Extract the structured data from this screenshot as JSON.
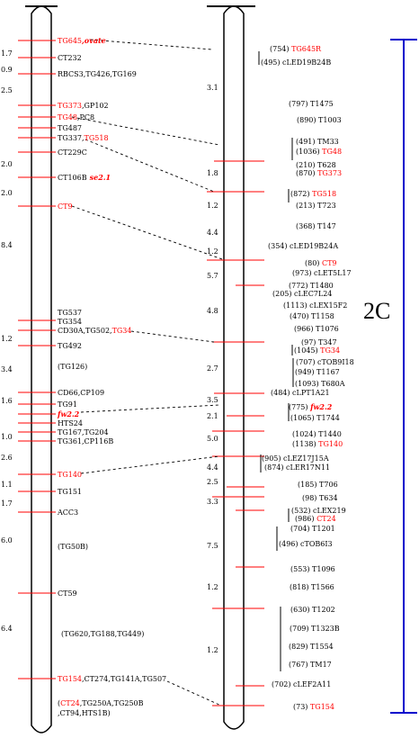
{
  "chromosome_label": "2C",
  "left_map": {
    "intervals": [
      "1.7",
      "0.9",
      "2.5",
      "2.0",
      "2.0",
      "8.4",
      "1.2",
      "3.4",
      "1.6",
      "1.0",
      "2.6",
      "1.1",
      "1.7",
      "6.0",
      "6.4"
    ],
    "markers": [
      {
        "text": "TG645",
        "red": true
      },
      {
        "text": ",ovate",
        "red": true,
        "italic": true
      },
      {
        "text": "CT232"
      },
      {
        "text": "RBCS3,TG426,TG169"
      },
      {
        "text": "TG373",
        "red": true
      },
      {
        "text": ",GP102"
      },
      {
        "text": "TG48",
        "red": true
      },
      {
        "text": ",PC8"
      },
      {
        "text": "TG487"
      },
      {
        "text": "TG337,"
      },
      {
        "text": "TG518",
        "red": true
      },
      {
        "text": "CT229C"
      },
      {
        "text": "CT106B"
      },
      {
        "text": "se2.1",
        "red": true,
        "italic": true
      },
      {
        "text": "CT9",
        "red": true
      },
      {
        "text": "TG537"
      },
      {
        "text": "TG354"
      },
      {
        "text": "CD30A,TG502,"
      },
      {
        "text": "TG34",
        "red": true
      },
      {
        "text": "TG492"
      },
      {
        "text": "(TG126)"
      },
      {
        "text": "CD66,CP109"
      },
      {
        "text": "TG91"
      },
      {
        "text": "fw2.2",
        "red": true,
        "italic": true
      },
      {
        "text": "HTS24"
      },
      {
        "text": "TG167,TG204"
      },
      {
        "text": "TG361,CP116B"
      },
      {
        "text": "TG140",
        "red": true
      },
      {
        "text": "TG151"
      },
      {
        "text": "ACC3"
      },
      {
        "text": "(TG50B)"
      },
      {
        "text": "CT59"
      },
      {
        "text": "(TG620,TG188,TG449)"
      },
      {
        "text": "TG154",
        "red": true
      },
      {
        "text": ",CT274,TG141A,TG507"
      },
      {
        "text": "(",
        "red": false
      },
      {
        "text": "CT24",
        "red": true
      },
      {
        "text": ",TG250A,TG250B"
      },
      {
        "text": ",CT94,HTS1B)"
      }
    ]
  },
  "right_map": {
    "intervals": [
      "3.1",
      "1.8",
      "1.2",
      "4.4",
      "1.2",
      "5.7",
      "4.8",
      "2.7",
      "3.5",
      "2.1",
      "5.0",
      "4.4",
      "2.5",
      "3.3",
      "7.5",
      "1.2",
      "1.2"
    ],
    "markers": [
      {
        "text": "(754) "
      },
      {
        "text": "TG645R",
        "red": true
      },
      {
        "text": "(495) cLED19B24B"
      },
      {
        "text": "(797) T1475"
      },
      {
        "text": "(890) T1003"
      },
      {
        "text": "(491) TM33"
      },
      {
        "text": "(1036) "
      },
      {
        "text": "TG48",
        "red": true
      },
      {
        "text": "(210) T628"
      },
      {
        "text": "(870) "
      },
      {
        "text": "TG373",
        "red": true
      },
      {
        "text": "(872) "
      },
      {
        "text": "TG518",
        "red": true
      },
      {
        "text": "(213) T723"
      },
      {
        "text": "(368) T147"
      },
      {
        "text": "(354) cLED19B24A"
      },
      {
        "text": "(80) "
      },
      {
        "text": "CT9",
        "red": true
      },
      {
        "text": "(973) cLET5L17"
      },
      {
        "text": "(772) T1480"
      },
      {
        "text": "(205) cLEC7L24"
      },
      {
        "text": "(1113) cLEX15F2"
      },
      {
        "text": "(470) T1158"
      },
      {
        "text": "(966) T1076"
      },
      {
        "text": "(97) T347"
      },
      {
        "text": "(1045) "
      },
      {
        "text": "TG34",
        "red": true
      },
      {
        "text": "(707) cTOB9I18"
      },
      {
        "text": "(949) T1167"
      },
      {
        "text": "(1093) T680A"
      },
      {
        "text": "(484) cLPT1A21"
      },
      {
        "text": "(775) "
      },
      {
        "text": "fw2.2",
        "red": true,
        "italic": true
      },
      {
        "text": "(1065) T1744"
      },
      {
        "text": "(1024) T1440"
      },
      {
        "text": "(1138) "
      },
      {
        "text": "TG140",
        "red": true
      },
      {
        "text": "(905) cLEZ17J15A"
      },
      {
        "text": "(874) cLER17N11"
      },
      {
        "text": "(185) T706"
      },
      {
        "text": "(98) T634"
      },
      {
        "text": "(532) cLEX219"
      },
      {
        "text": "(986) "
      },
      {
        "text": "CT24",
        "red": true
      },
      {
        "text": "(704) T1201"
      },
      {
        "text": "(496) cTOB6I3"
      },
      {
        "text": "(553) T1096"
      },
      {
        "text": "(818) T1566"
      },
      {
        "text": "(630) T1202"
      },
      {
        "text": "(709) T1323B"
      },
      {
        "text": "(829) T1554"
      },
      {
        "text": "(767) TM17"
      },
      {
        "text": "(702) cLEF2A11"
      },
      {
        "text": "(73) "
      },
      {
        "text": "TG154",
        "red": true
      }
    ]
  }
}
